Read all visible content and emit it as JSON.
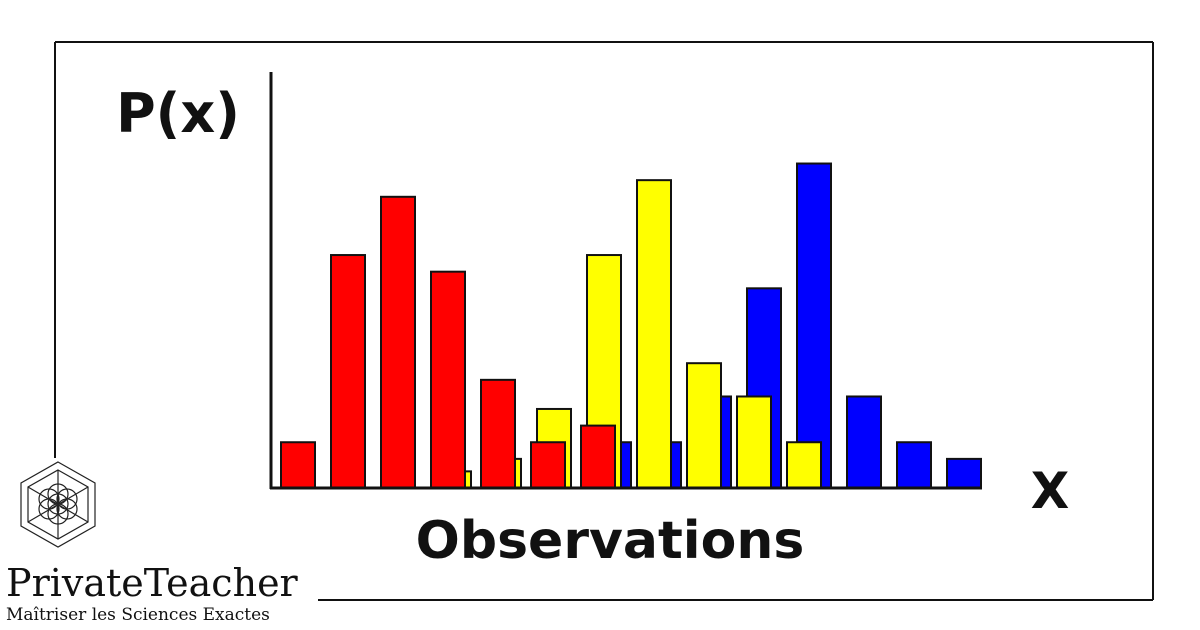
{
  "chart_data": {
    "type": "bar",
    "y_label": "P(x)",
    "x_label": "X",
    "x_title": "Observations",
    "categories": [
      null,
      null,
      null,
      null,
      null,
      null,
      null,
      null,
      null,
      null,
      null,
      null,
      null,
      null
    ],
    "series": [
      {
        "color": "#0000ff",
        "values": [
          null,
          null,
          null,
          null,
          null,
          null,
          11,
          11,
          22,
          48,
          78,
          22,
          11,
          7
        ]
      },
      {
        "color": "#ffff00",
        "values": [
          null,
          null,
          null,
          4,
          7,
          19,
          56,
          74,
          30,
          22,
          11,
          null,
          null,
          null
        ]
      },
      {
        "color": "#ff0000",
        "values": [
          11,
          56,
          70,
          52,
          26,
          11,
          15,
          null,
          null,
          null,
          null,
          null,
          null,
          null
        ]
      }
    ],
    "ylim": [
      0,
      100
    ]
  },
  "brand": {
    "name": "PrivateTeacher",
    "tagline": "Maîtriser les Sciences Exactes"
  }
}
